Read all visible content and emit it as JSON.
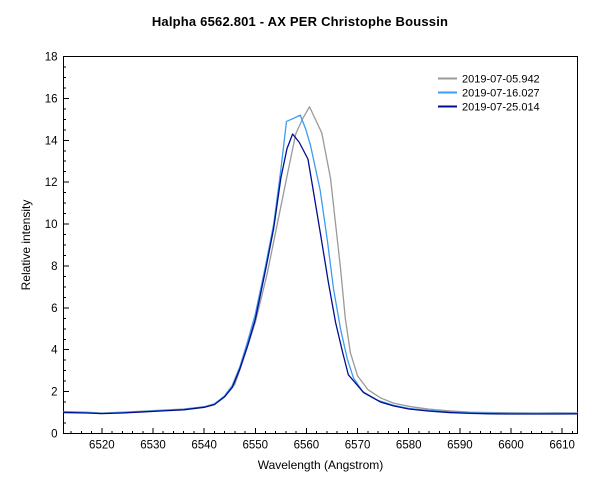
{
  "chart_data": {
    "type": "line",
    "title": "Halpha 6562.801 - AX PER   Christophe Boussin",
    "xlabel": "Wavelength (Angstrom)",
    "ylabel": "Relative intensity",
    "xlim": [
      6512.5,
      6613
    ],
    "ylim": [
      0,
      18
    ],
    "x_major_ticks": [
      6520,
      6530,
      6540,
      6550,
      6560,
      6570,
      6580,
      6590,
      6600,
      6610
    ],
    "x_minor_step": 2,
    "y_major_ticks": [
      0,
      2,
      4,
      6,
      8,
      10,
      12,
      14,
      16,
      18
    ],
    "y_minor_step": 0.5,
    "grid": false,
    "legend_position": "top-right-inside",
    "axis_color": "#000000",
    "background_color": "#ffffff",
    "series": [
      {
        "name": "2019-07-05.942",
        "color": "#9a9a9a",
        "points": [
          [
            6512.6,
            1.05
          ],
          [
            6517,
            1.02
          ],
          [
            6520,
            0.98
          ],
          [
            6524,
            1.02
          ],
          [
            6528,
            1.07
          ],
          [
            6532,
            1.12
          ],
          [
            6536,
            1.17
          ],
          [
            6540,
            1.28
          ],
          [
            6542,
            1.42
          ],
          [
            6544,
            1.78
          ],
          [
            6546,
            2.35
          ],
          [
            6547,
            3.05
          ],
          [
            6548.5,
            4.15
          ],
          [
            6550,
            5.3
          ],
          [
            6552.3,
            7.6
          ],
          [
            6554.3,
            10.0
          ],
          [
            6556.3,
            12.4
          ],
          [
            6557.9,
            14.3
          ],
          [
            6559.3,
            15.05
          ],
          [
            6560.6,
            15.6
          ],
          [
            6563.0,
            14.35
          ],
          [
            6564.7,
            12.2
          ],
          [
            6565.7,
            10.0
          ],
          [
            6566.7,
            7.8
          ],
          [
            6567.6,
            5.5
          ],
          [
            6568.6,
            3.85
          ],
          [
            6570,
            2.75
          ],
          [
            6572,
            2.1
          ],
          [
            6574.5,
            1.7
          ],
          [
            6577,
            1.45
          ],
          [
            6580.4,
            1.28
          ],
          [
            6584,
            1.16
          ],
          [
            6588,
            1.08
          ],
          [
            6592,
            1.02
          ],
          [
            6596,
            1.0
          ],
          [
            6600,
            0.99
          ],
          [
            6605,
            0.98
          ],
          [
            6609,
            0.99
          ],
          [
            6613,
            0.98
          ]
        ]
      },
      {
        "name": "2019-07-16.027",
        "color": "#3d9bf0",
        "points": [
          [
            6512.6,
            1.03
          ],
          [
            6517,
            1.0
          ],
          [
            6520,
            0.96
          ],
          [
            6524,
            1.0
          ],
          [
            6528,
            1.05
          ],
          [
            6532,
            1.1
          ],
          [
            6536,
            1.15
          ],
          [
            6540,
            1.27
          ],
          [
            6542,
            1.4
          ],
          [
            6544,
            1.8
          ],
          [
            6545.5,
            2.3
          ],
          [
            6547,
            3.2
          ],
          [
            6548.5,
            4.4
          ],
          [
            6550,
            5.7
          ],
          [
            6552,
            8.0
          ],
          [
            6553.6,
            10.0
          ],
          [
            6555,
            12.6
          ],
          [
            6556.1,
            14.9
          ],
          [
            6557.5,
            15.05
          ],
          [
            6558.8,
            15.2
          ],
          [
            6559.9,
            14.5
          ],
          [
            6560.8,
            13.75
          ],
          [
            6562.7,
            11.6
          ],
          [
            6564.1,
            9.2
          ],
          [
            6565.3,
            6.9
          ],
          [
            6566.7,
            4.95
          ],
          [
            6568,
            3.55
          ],
          [
            6569.2,
            2.65
          ],
          [
            6571,
            2.0
          ],
          [
            6574,
            1.58
          ],
          [
            6577,
            1.35
          ],
          [
            6580,
            1.2
          ],
          [
            6584,
            1.1
          ],
          [
            6588,
            1.03
          ],
          [
            6592,
            0.99
          ],
          [
            6596,
            0.97
          ],
          [
            6600,
            0.96
          ],
          [
            6605,
            0.96
          ],
          [
            6609,
            0.96
          ],
          [
            6613,
            0.96
          ]
        ]
      },
      {
        "name": "2019-07-25.014",
        "color": "#000e8f",
        "points": [
          [
            6512.6,
            1.0
          ],
          [
            6517,
            0.98
          ],
          [
            6520,
            0.95
          ],
          [
            6524,
            0.98
          ],
          [
            6528,
            1.03
          ],
          [
            6532,
            1.08
          ],
          [
            6536,
            1.13
          ],
          [
            6540,
            1.25
          ],
          [
            6542,
            1.38
          ],
          [
            6544,
            1.75
          ],
          [
            6545.5,
            2.2
          ],
          [
            6547,
            3.1
          ],
          [
            6548.5,
            4.2
          ],
          [
            6550,
            5.45
          ],
          [
            6552,
            7.8
          ],
          [
            6553.6,
            9.8
          ],
          [
            6555,
            12.2
          ],
          [
            6556.2,
            13.6
          ],
          [
            6557.3,
            14.3
          ],
          [
            6558.6,
            13.9
          ],
          [
            6560.3,
            13.1
          ],
          [
            6561.2,
            11.8
          ],
          [
            6562.7,
            9.6
          ],
          [
            6564.3,
            7.2
          ],
          [
            6565.7,
            5.3
          ],
          [
            6567.1,
            3.85
          ],
          [
            6568.2,
            2.8
          ],
          [
            6571.2,
            1.95
          ],
          [
            6574.5,
            1.5
          ],
          [
            6577,
            1.32
          ],
          [
            6580,
            1.17
          ],
          [
            6584,
            1.07
          ],
          [
            6588,
            1.0
          ],
          [
            6592,
            0.96
          ],
          [
            6596,
            0.94
          ],
          [
            6600,
            0.93
          ],
          [
            6605,
            0.93
          ],
          [
            6609,
            0.93
          ],
          [
            6613,
            0.94
          ]
        ]
      }
    ]
  }
}
